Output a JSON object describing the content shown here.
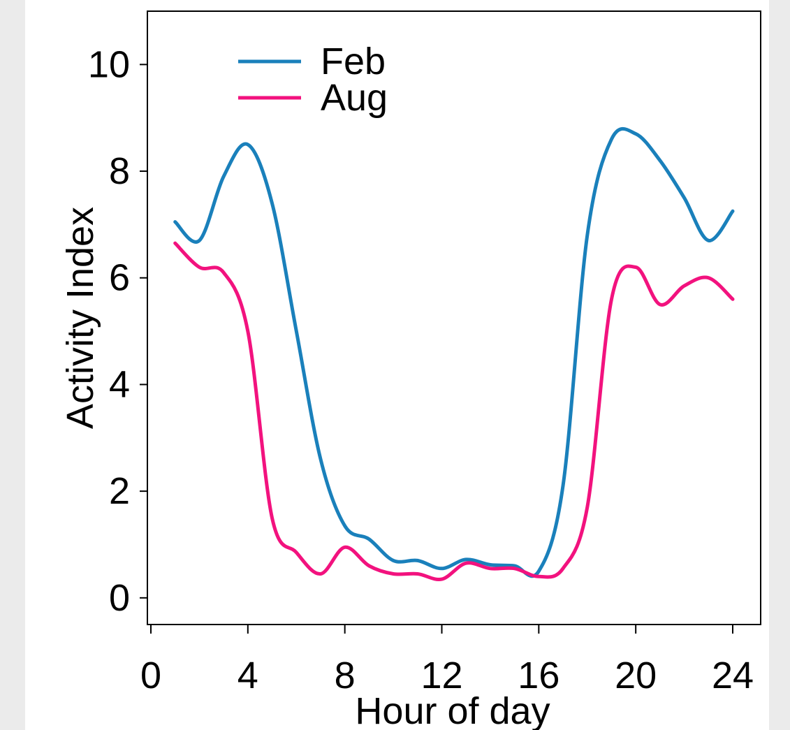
{
  "chart_data": {
    "type": "line",
    "xlabel": "Hour of day",
    "ylabel": "Activity Index",
    "xlim": [
      0,
      24
    ],
    "ylim": [
      -0.5,
      11
    ],
    "xticks": [
      0,
      4,
      8,
      12,
      16,
      20,
      24
    ],
    "yticks": [
      0,
      2,
      4,
      6,
      8,
      10
    ],
    "grid": false,
    "legend": "top-left",
    "series": [
      {
        "name": "Feb",
        "color": "#1a80bb",
        "x": [
          1,
          2,
          3,
          4,
          5,
          6,
          7,
          8,
          9,
          10,
          11,
          12,
          13,
          14,
          15,
          16,
          17,
          18,
          19,
          20,
          21,
          22,
          23,
          24
        ],
        "y": [
          7.05,
          6.7,
          7.9,
          8.5,
          7.4,
          5.0,
          2.6,
          1.35,
          1.1,
          0.7,
          0.7,
          0.55,
          0.72,
          0.62,
          0.6,
          0.5,
          2.1,
          6.8,
          8.6,
          8.7,
          8.2,
          7.5,
          6.7,
          7.25
        ]
      },
      {
        "name": "Aug",
        "color": "#f2127e",
        "x": [
          1,
          2,
          3,
          4,
          5,
          6,
          7,
          8,
          9,
          10,
          11,
          12,
          13,
          14,
          15,
          16,
          17,
          18,
          19,
          20,
          21,
          22,
          23,
          24
        ],
        "y": [
          6.65,
          6.2,
          6.1,
          5.0,
          1.5,
          0.85,
          0.45,
          0.95,
          0.6,
          0.45,
          0.45,
          0.35,
          0.65,
          0.55,
          0.55,
          0.4,
          0.55,
          1.7,
          5.6,
          6.2,
          5.5,
          5.85,
          6.0,
          5.6
        ]
      }
    ]
  }
}
